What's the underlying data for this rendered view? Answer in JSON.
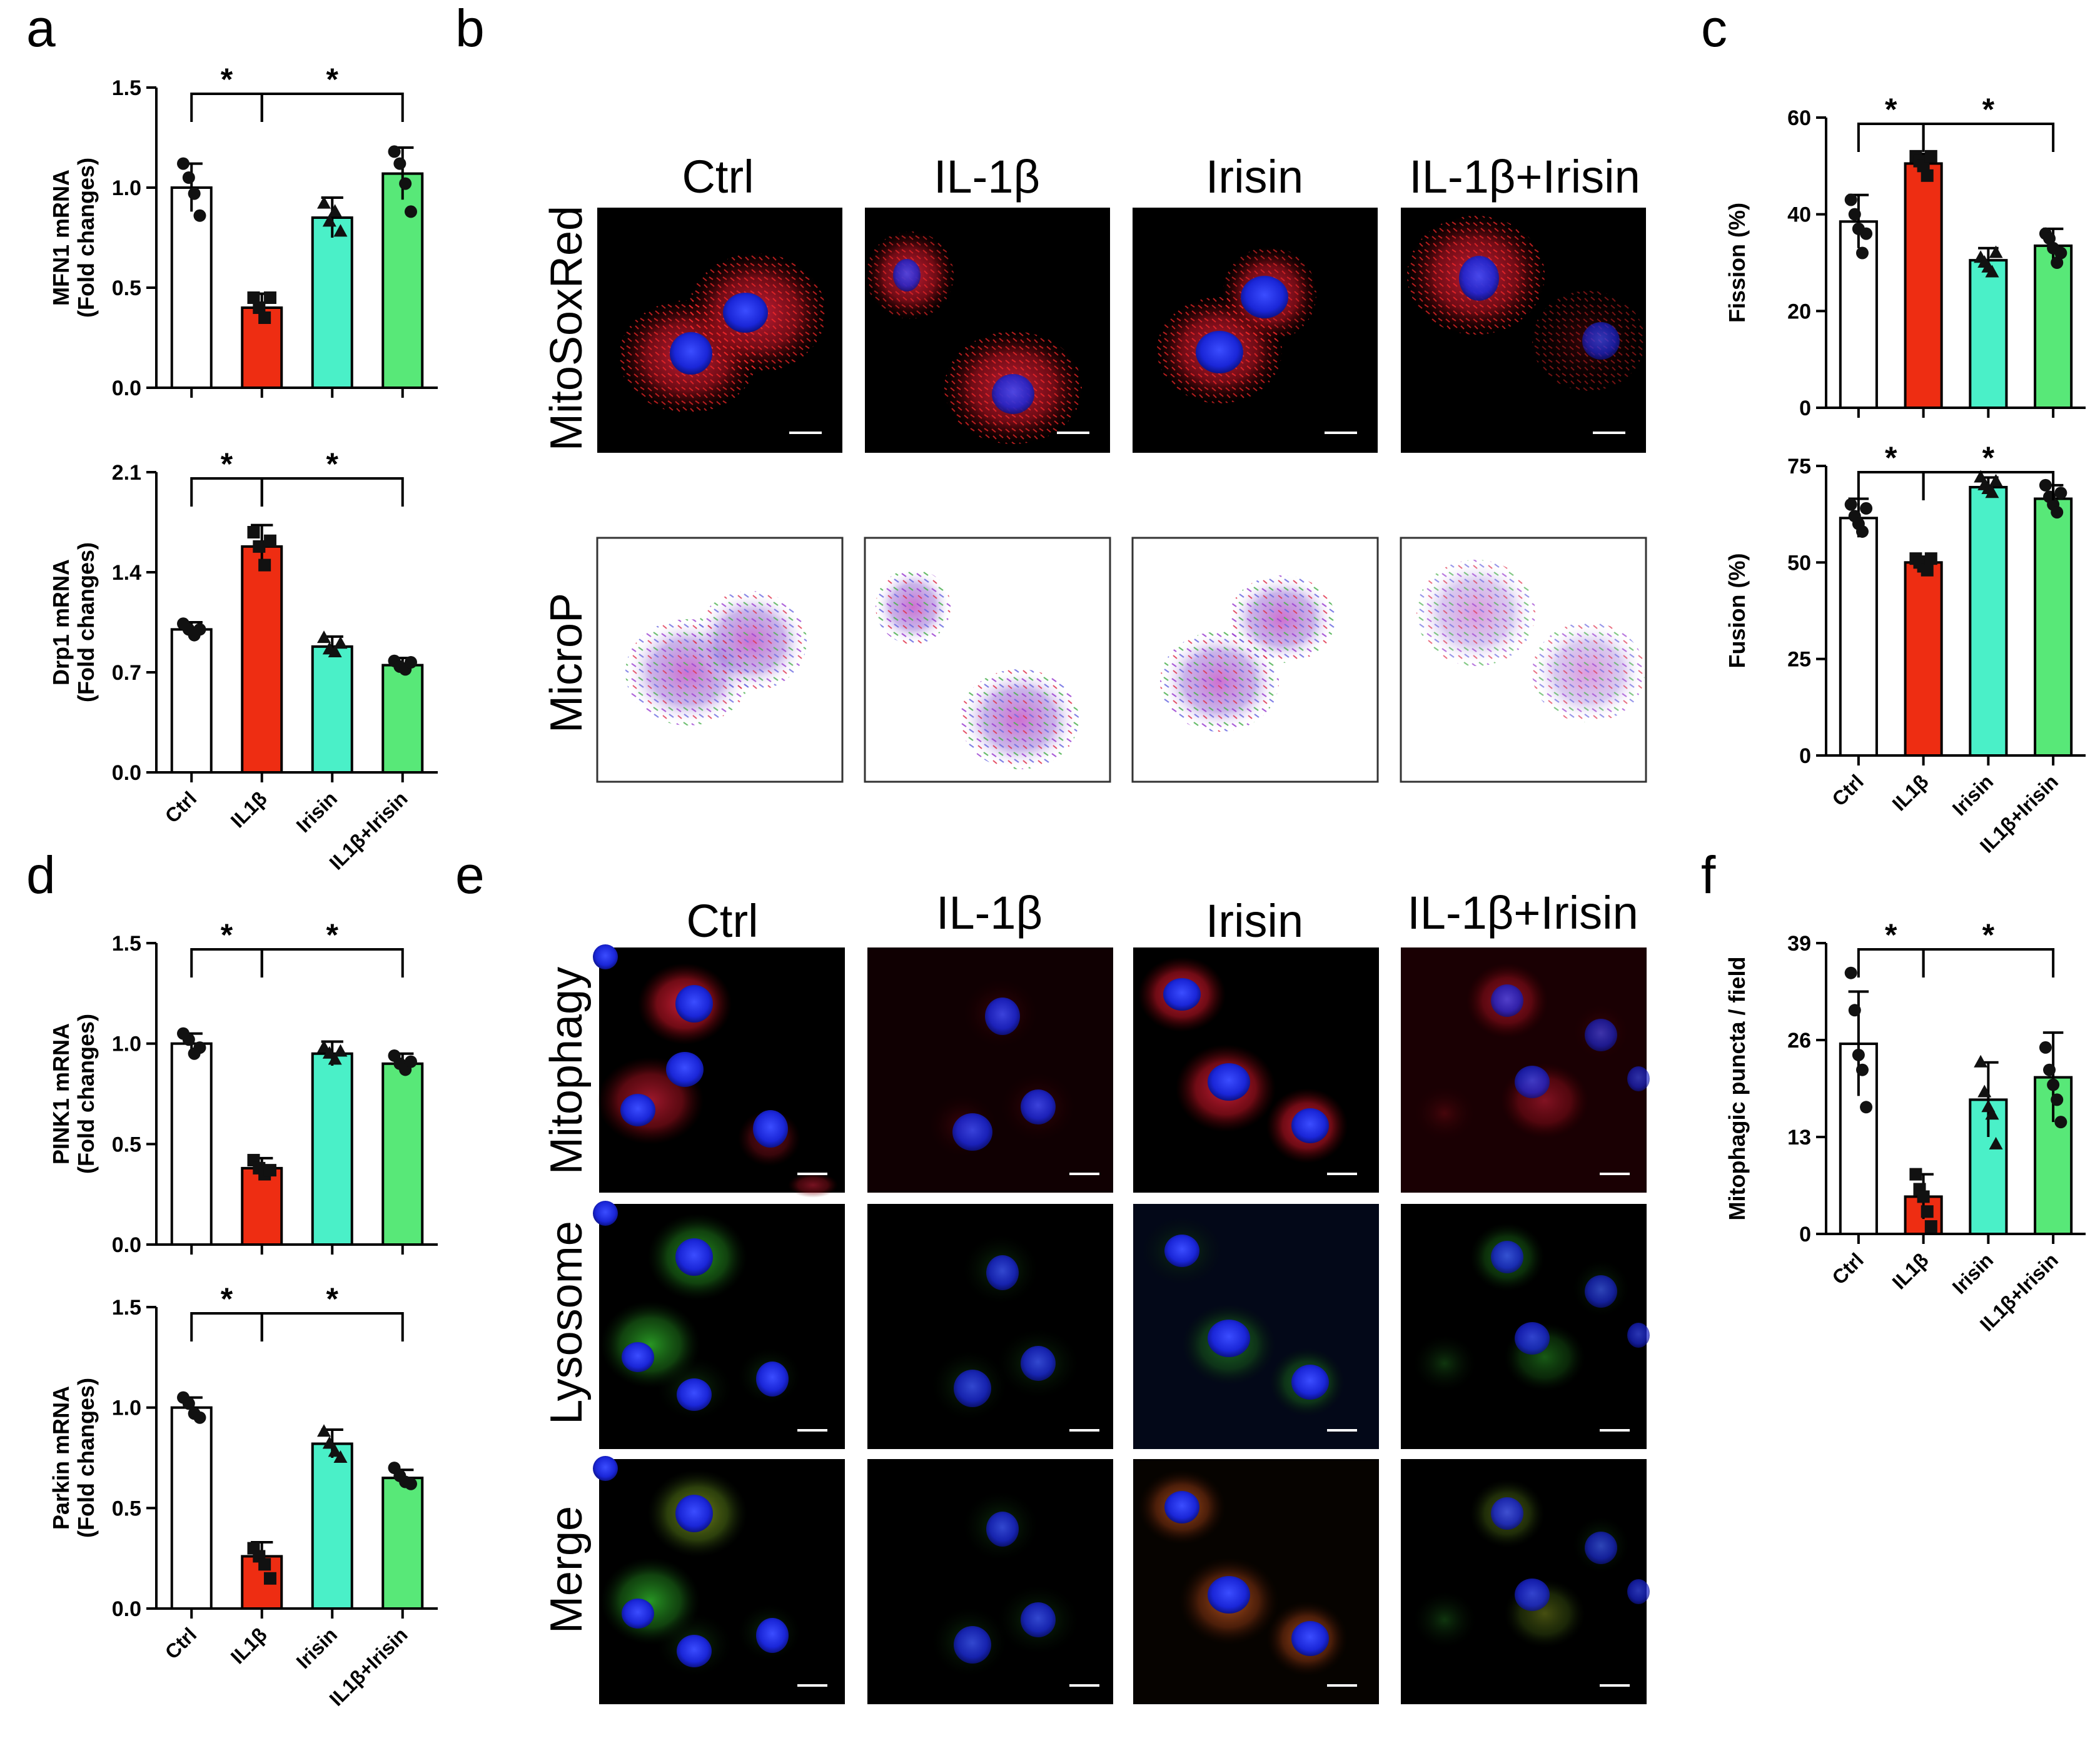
{
  "colors": {
    "Ctrl": "#ffffff",
    "IL1β": "#ee2d12",
    "Irisin": "#4af0c8",
    "IL1β+Irisin": "#58e878",
    "dot": "#111111",
    "axis": "#000000"
  },
  "panel_labels": [
    "a",
    "b",
    "c",
    "d",
    "e",
    "f"
  ],
  "panel_b": {
    "columns": [
      "Ctrl",
      "IL-1β",
      "Irisin",
      "IL-1β+Irisin"
    ],
    "rows": [
      "MitoSoxRed",
      "MicroP"
    ]
  },
  "panel_e": {
    "columns": [
      "Ctrl",
      "IL-1β",
      "Irisin",
      "IL-1β+Irisin"
    ],
    "rows": [
      "Mitophagy",
      "Lysosome",
      "Merge"
    ]
  },
  "chart_data": [
    {
      "panel": "a",
      "type": "bar",
      "ylabel": [
        "MFN1 mRNA",
        "(Fold changes)"
      ],
      "categories": [
        "Ctrl",
        "IL1β",
        "Irisin",
        "IL1β+Irisin"
      ],
      "show_xticklabels": false,
      "values": [
        1.0,
        0.4,
        0.85,
        1.07
      ],
      "errors": [
        0.12,
        0.07,
        0.1,
        0.13
      ],
      "points": [
        [
          1.12,
          1.05,
          0.97,
          0.86
        ],
        [
          0.45,
          0.4,
          0.35,
          0.45
        ],
        [
          0.92,
          0.83,
          0.88,
          0.78
        ],
        [
          1.18,
          1.12,
          1.02,
          0.88
        ]
      ],
      "markers": [
        "circle",
        "square",
        "triangle",
        "circle"
      ],
      "ylim": [
        0,
        1.5
      ],
      "yticks": [
        0.0,
        0.5,
        1.0,
        1.5
      ],
      "ytick_labels": [
        "0.0",
        "0.5",
        "1.0",
        "1.5"
      ],
      "significance": [
        {
          "from": 0,
          "to": 1,
          "label": "*"
        },
        {
          "from": 1,
          "to": 3,
          "label": "*"
        }
      ]
    },
    {
      "panel": "a",
      "type": "bar",
      "ylabel": [
        "Drp1 mRNA",
        "(Fold changes)"
      ],
      "categories": [
        "Ctrl",
        "IL1β",
        "Irisin",
        "IL1β+Irisin"
      ],
      "show_xticklabels": true,
      "values": [
        1.0,
        1.58,
        0.88,
        0.75
      ],
      "errors": [
        0.05,
        0.15,
        0.07,
        0.05
      ],
      "points": [
        [
          1.04,
          1.0,
          0.96,
          1.0
        ],
        [
          1.68,
          1.58,
          1.45,
          1.62
        ],
        [
          0.94,
          0.86,
          0.84,
          0.9
        ],
        [
          0.78,
          0.74,
          0.72,
          0.77
        ]
      ],
      "markers": [
        "circle",
        "square",
        "triangle",
        "circle"
      ],
      "ylim": [
        0,
        2.1
      ],
      "yticks": [
        0.0,
        0.7,
        1.4,
        2.1
      ],
      "ytick_labels": [
        "0.0",
        "0.7",
        "1.4",
        "2.1"
      ],
      "significance": [
        {
          "from": 0,
          "to": 1,
          "label": "*"
        },
        {
          "from": 1,
          "to": 3,
          "label": "*"
        }
      ]
    },
    {
      "panel": "c",
      "type": "bar",
      "ylabel": [
        "Fission (%)"
      ],
      "categories": [
        "Ctrl",
        "IL1β",
        "Irisin",
        "IL1β+Irisin"
      ],
      "show_xticklabels": false,
      "values": [
        38.5,
        50.5,
        30.5,
        33.5
      ],
      "errors": [
        5.5,
        2.0,
        2.5,
        3.5
      ],
      "points": [
        [
          43,
          40,
          37,
          32,
          36
        ],
        [
          52,
          51,
          50,
          48,
          52
        ],
        [
          31,
          30,
          29,
          28,
          32
        ],
        [
          36,
          35,
          33,
          30,
          32
        ]
      ],
      "markers": [
        "circle",
        "square",
        "triangle",
        "circle"
      ],
      "ylim": [
        0,
        60
      ],
      "yticks": [
        0,
        20,
        40,
        60
      ],
      "ytick_labels": [
        "0",
        "20",
        "40",
        "60"
      ],
      "significance": [
        {
          "from": 0,
          "to": 1,
          "label": "*"
        },
        {
          "from": 1,
          "to": 3,
          "label": "*"
        }
      ]
    },
    {
      "panel": "c",
      "type": "bar",
      "ylabel": [
        "Fusion (%)"
      ],
      "categories": [
        "Ctrl",
        "IL1β",
        "Irisin",
        "IL1β+Irisin"
      ],
      "show_xticklabels": true,
      "values": [
        61.5,
        50,
        69.5,
        66.5
      ],
      "errors": [
        5.0,
        1.5,
        2.5,
        3.5
      ],
      "points": [
        [
          65,
          62,
          60,
          58,
          64
        ],
        [
          51,
          50,
          49,
          48,
          51
        ],
        [
          72,
          70,
          69,
          68,
          71
        ],
        [
          70,
          67,
          65,
          63,
          68
        ]
      ],
      "markers": [
        "circle",
        "square",
        "triangle",
        "circle"
      ],
      "ylim": [
        0,
        75
      ],
      "yticks": [
        0,
        25,
        50,
        75
      ],
      "ytick_labels": [
        "0",
        "25",
        "50",
        "75"
      ],
      "significance": [
        {
          "from": 0,
          "to": 1,
          "label": "*"
        },
        {
          "from": 1,
          "to": 3,
          "label": "*"
        }
      ]
    },
    {
      "panel": "d",
      "type": "bar",
      "ylabel": [
        "PINK1 mRNA",
        "(Fold changes)"
      ],
      "categories": [
        "Ctrl",
        "IL1β",
        "Irisin",
        "IL1β+Irisin"
      ],
      "show_xticklabels": false,
      "values": [
        1.0,
        0.38,
        0.95,
        0.9
      ],
      "errors": [
        0.05,
        0.05,
        0.06,
        0.05
      ],
      "points": [
        [
          1.05,
          1.02,
          0.95,
          0.98
        ],
        [
          0.42,
          0.38,
          0.35,
          0.37
        ],
        [
          0.98,
          0.95,
          0.92,
          0.96
        ],
        [
          0.94,
          0.9,
          0.87,
          0.91
        ]
      ],
      "markers": [
        "circle",
        "square",
        "triangle",
        "circle"
      ],
      "ylim": [
        0,
        1.5
      ],
      "yticks": [
        0.0,
        0.5,
        1.0,
        1.5
      ],
      "ytick_labels": [
        "0.0",
        "0.5",
        "1.0",
        "1.5"
      ],
      "significance": [
        {
          "from": 0,
          "to": 1,
          "label": "*"
        },
        {
          "from": 1,
          "to": 3,
          "label": "*"
        }
      ]
    },
    {
      "panel": "d",
      "type": "bar",
      "ylabel": [
        "Parkin mRNA",
        "(Fold changes)"
      ],
      "categories": [
        "Ctrl",
        "IL1β",
        "Irisin",
        "IL1β+Irisin"
      ],
      "show_xticklabels": true,
      "values": [
        1.0,
        0.26,
        0.82,
        0.65
      ],
      "errors": [
        0.05,
        0.07,
        0.07,
        0.04
      ],
      "points": [
        [
          1.05,
          1.02,
          0.97,
          0.95
        ],
        [
          0.3,
          0.26,
          0.22,
          0.15
        ],
        [
          0.88,
          0.82,
          0.78,
          0.75
        ],
        [
          0.7,
          0.66,
          0.63,
          0.62
        ]
      ],
      "markers": [
        "circle",
        "square",
        "triangle",
        "circle"
      ],
      "ylim": [
        0,
        1.5
      ],
      "yticks": [
        0.0,
        0.5,
        1.0,
        1.5
      ],
      "ytick_labels": [
        "0.0",
        "0.5",
        "1.0",
        "1.5"
      ],
      "significance": [
        {
          "from": 0,
          "to": 1,
          "label": "*"
        },
        {
          "from": 1,
          "to": 3,
          "label": "*"
        }
      ]
    },
    {
      "panel": "f",
      "type": "bar",
      "ylabel": [
        "Mitophagic puncta / field"
      ],
      "categories": [
        "Ctrl",
        "IL1β",
        "Irisin",
        "IL1β+Irisin"
      ],
      "show_xticklabels": true,
      "values": [
        25.5,
        5,
        18,
        21
      ],
      "errors": [
        7,
        3,
        5,
        6
      ],
      "points": [
        [
          35,
          30,
          24,
          22,
          17
        ],
        [
          8,
          6,
          5,
          3,
          1
        ],
        [
          23,
          19,
          17,
          16,
          12
        ],
        [
          25,
          22,
          20,
          18,
          15
        ]
      ],
      "markers": [
        "circle",
        "square",
        "triangle",
        "circle"
      ],
      "ylim": [
        0,
        39
      ],
      "yticks": [
        0,
        13,
        26,
        39
      ],
      "ytick_labels": [
        "0",
        "13",
        "26",
        "39"
      ],
      "significance": [
        {
          "from": 0,
          "to": 1,
          "label": "*"
        },
        {
          "from": 1,
          "to": 3,
          "label": "*"
        }
      ]
    }
  ]
}
